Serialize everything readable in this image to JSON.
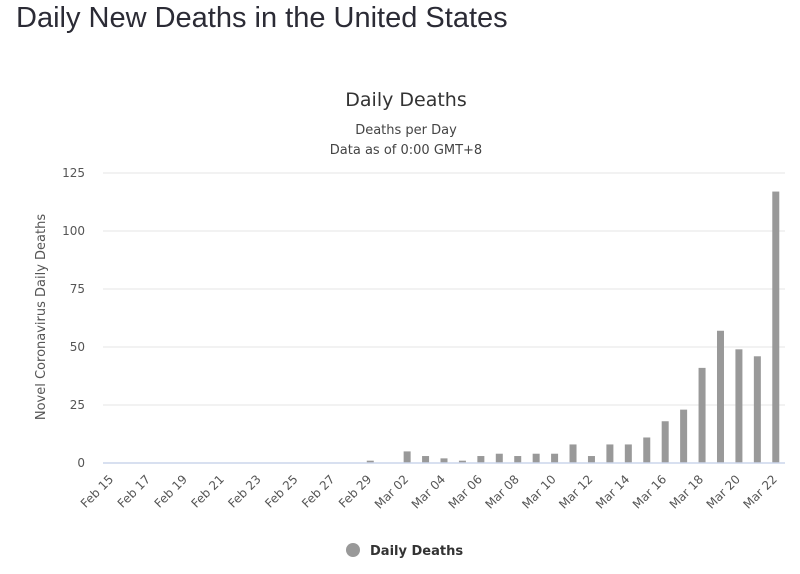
{
  "page": {
    "title": "Daily New Deaths in the United States"
  },
  "chart_data": {
    "type": "bar",
    "title": "Daily Deaths",
    "subtitle_lines": [
      "Deaths per Day",
      "Data as of 0:00 GMT+8"
    ],
    "xlabel": "",
    "ylabel": "Novel Coronavirus Daily Deaths",
    "ylim": [
      0,
      125
    ],
    "yticks": [
      0,
      25,
      50,
      75,
      100,
      125
    ],
    "grid": true,
    "legend_position": "bottom-center",
    "categories": [
      "Feb 15",
      "Feb 16",
      "Feb 17",
      "Feb 18",
      "Feb 19",
      "Feb 20",
      "Feb 21",
      "Feb 22",
      "Feb 23",
      "Feb 24",
      "Feb 25",
      "Feb 26",
      "Feb 27",
      "Feb 28",
      "Feb 29",
      "Mar 01",
      "Mar 02",
      "Mar 03",
      "Mar 04",
      "Mar 05",
      "Mar 06",
      "Mar 07",
      "Mar 08",
      "Mar 09",
      "Mar 10",
      "Mar 11",
      "Mar 12",
      "Mar 13",
      "Mar 14",
      "Mar 15",
      "Mar 16",
      "Mar 17",
      "Mar 18",
      "Mar 19",
      "Mar 20",
      "Mar 21",
      "Mar 22"
    ],
    "xtick_labels": [
      "Feb 15",
      "Feb 17",
      "Feb 19",
      "Feb 21",
      "Feb 23",
      "Feb 25",
      "Feb 27",
      "Feb 29",
      "Mar 02",
      "Mar 04",
      "Mar 06",
      "Mar 08",
      "Mar 10",
      "Mar 12",
      "Mar 14",
      "Mar 16",
      "Mar 18",
      "Mar 20",
      "Mar 22"
    ],
    "series": [
      {
        "name": "Daily Deaths",
        "color": "#999999",
        "values": [
          0,
          0,
          0,
          0,
          0,
          0,
          0,
          0,
          0,
          0,
          0,
          0,
          0,
          0,
          1,
          0,
          5,
          3,
          2,
          1,
          3,
          4,
          3,
          4,
          4,
          8,
          3,
          8,
          8,
          11,
          18,
          23,
          41,
          57,
          49,
          46,
          117
        ]
      }
    ]
  }
}
